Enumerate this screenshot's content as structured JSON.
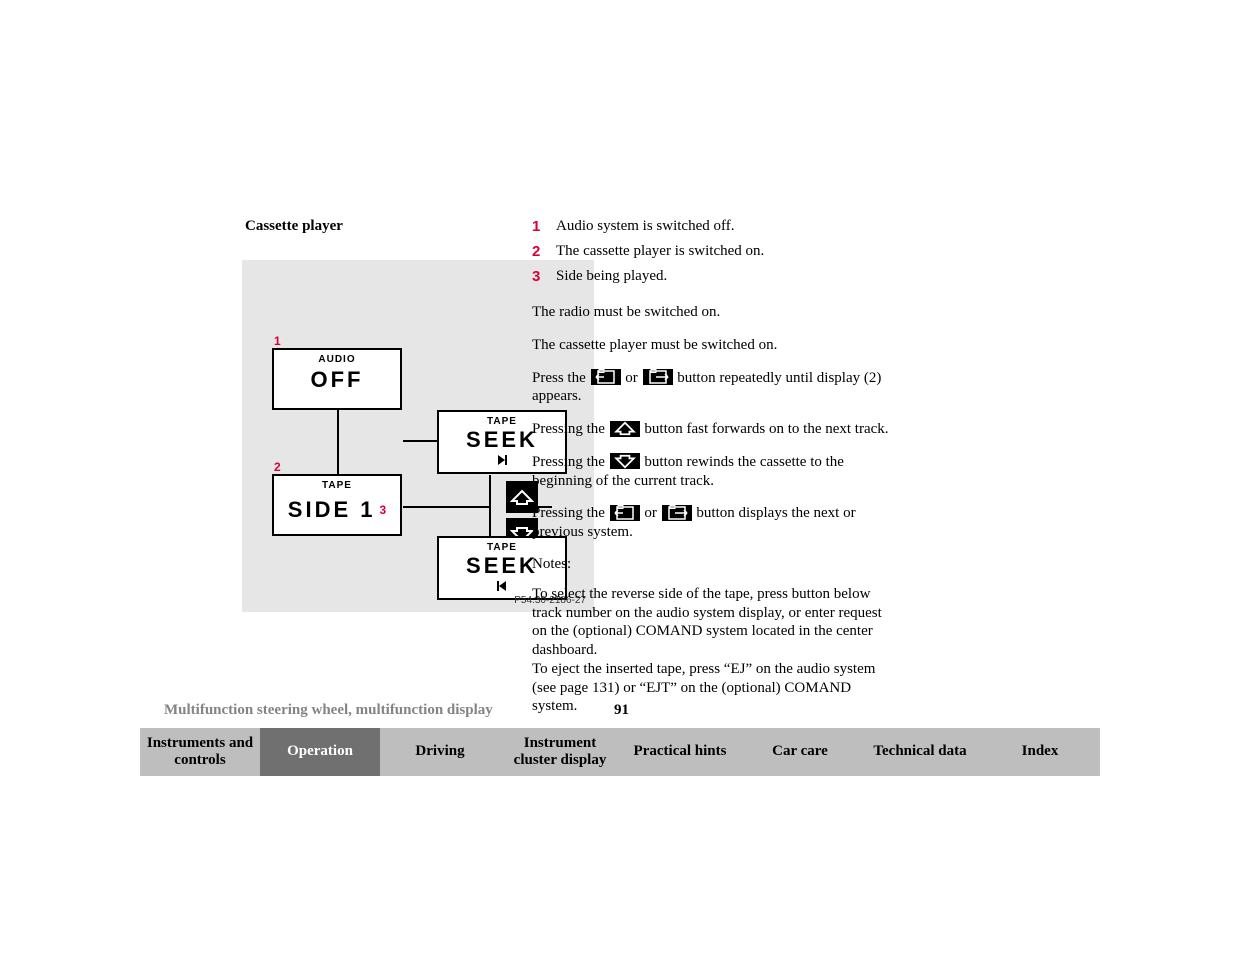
{
  "colors": {
    "figure_bg": "#e6e6e6",
    "ref_color": "#d9003a",
    "tab_active_bg": "#6f706f",
    "tab_active_fg": "#ffffff",
    "tab_bg": "#bebebe",
    "tab_fg": "#000000",
    "footer_grey": "#848484"
  },
  "section_title": "Cassette player",
  "figure": {
    "code": "P54.30-2186-27",
    "refs": {
      "1": "1",
      "2": "2",
      "3": "3"
    },
    "boxes": {
      "audio": {
        "small": "AUDIO",
        "big": "OFF"
      },
      "side": {
        "small": "TAPE",
        "big": "SIDE 1"
      },
      "seek_up": {
        "small": "TAPE",
        "big": "SEEK"
      },
      "seek_down": {
        "small": "TAPE",
        "big": "SEEK"
      }
    }
  },
  "legend": [
    {
      "num": "1",
      "text": "Audio system is switched off."
    },
    {
      "num": "2",
      "text": "The cassette player is switched on."
    },
    {
      "num": "3",
      "text": "Side being played."
    }
  ],
  "paras": {
    "p1": "The radio must be switched on.",
    "p2": "The cassette player must be switched on.",
    "p3a": "Press the ",
    "p3b": " or ",
    "p3c": " button repeatedly until display (2) appears.",
    "p4a": "Pressing the ",
    "p4b": " button fast forwards on to the next track.",
    "p5a": "Pressing the ",
    "p5b": " button rewinds the cassette to the beginning of the current track.",
    "p6a": "Pressing the ",
    "p6b": " or ",
    "p6c": " button displays the next or previous system.",
    "notes_label": "Notes:",
    "notes_body": "To select the reverse side of the tape, press button below track number on the audio system display, or enter request on the (optional) COMAND system located in the center dashboard.\nTo eject the inserted tape, press “EJ” on the audio system (see page 131) or “EJT” on the (optional) COMAND system."
  },
  "running_title": "Multifunction steering wheel, multifunction display",
  "page_number": "91",
  "tabs": [
    {
      "label": "Instruments and controls",
      "active": false
    },
    {
      "label": "Operation",
      "active": true
    },
    {
      "label": "Driving",
      "active": false
    },
    {
      "label": "Instrument cluster display",
      "active": false
    },
    {
      "label": "Practical hints",
      "active": false
    },
    {
      "label": "Car care",
      "active": false
    },
    {
      "label": "Technical data",
      "active": false
    },
    {
      "label": "Index",
      "active": false
    }
  ]
}
